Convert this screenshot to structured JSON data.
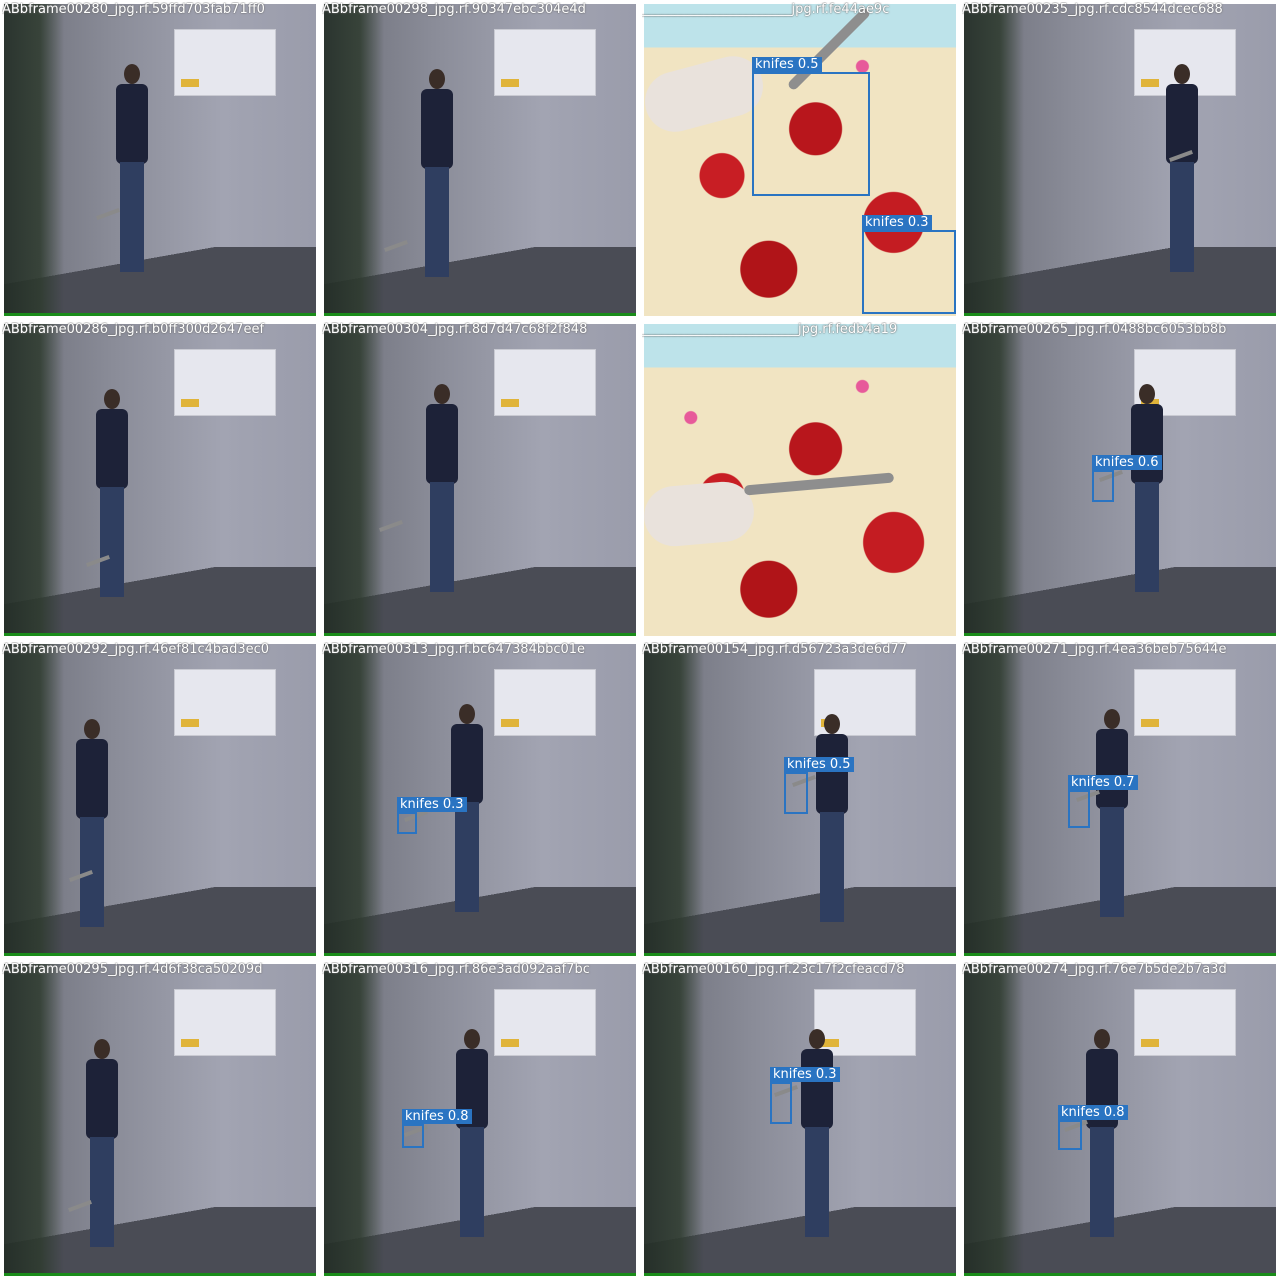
{
  "accent_color": "#2a74c2",
  "tiles": [
    {
      "filename": "ABbframe00280_jpg.rf.59ffd703fab71ff0",
      "scene": "room",
      "boxes": []
    },
    {
      "filename": "ABbframe00298_jpg.rf.90347ebc304e4d",
      "scene": "room",
      "boxes": []
    },
    {
      "filename": "_______________________jpg.rf.fe44ae9c",
      "scene": "bed",
      "boxes": [
        {
          "label": "knifes",
          "conf": "0.5"
        },
        {
          "label": "knifes",
          "conf": "0.3"
        }
      ]
    },
    {
      "filename": "ABbframe00235_jpg.rf.cdc8544dcec688",
      "scene": "room",
      "boxes": []
    },
    {
      "filename": "ABbframe00286_jpg.rf.b0ff300d2647eef",
      "scene": "room",
      "boxes": []
    },
    {
      "filename": "ABbframe00304_jpg.rf.8d7d47c68f2f848",
      "scene": "room",
      "boxes": []
    },
    {
      "filename": "________________________jpg.rf.fedb4a19",
      "scene": "bed",
      "boxes": []
    },
    {
      "filename": "ABbframe00265_jpg.rf.0488bc6053bb8b",
      "scene": "room",
      "boxes": [
        {
          "label": "knifes",
          "conf": "0.6"
        }
      ]
    },
    {
      "filename": "ABbframe00292_jpg.rf.46ef81c4bad3ec0",
      "scene": "room",
      "boxes": []
    },
    {
      "filename": "ABbframe00313_jpg.rf.bc647384bbc01e",
      "scene": "room",
      "boxes": [
        {
          "label": "knifes",
          "conf": "0.3"
        }
      ]
    },
    {
      "filename": "ABbframe00154_jpg.rf.d56723a3de6d77",
      "scene": "room",
      "boxes": [
        {
          "label": "knifes",
          "conf": "0.5"
        }
      ]
    },
    {
      "filename": "ABbframe00271_jpg.rf.4ea36beb75644e",
      "scene": "room",
      "boxes": [
        {
          "label": "knifes",
          "conf": "0.7"
        }
      ]
    },
    {
      "filename": "ABbframe00295_jpg.rf.4d6f38ca50209d",
      "scene": "room",
      "boxes": []
    },
    {
      "filename": "ABbframe00316_jpg.rf.86e3ad092aaf7bc",
      "scene": "room",
      "boxes": [
        {
          "label": "knifes",
          "conf": "0.8"
        }
      ]
    },
    {
      "filename": "ABbframe00160_jpg.rf.23c17f2cfeacd78",
      "scene": "room",
      "boxes": [
        {
          "label": "knifes",
          "conf": "0.3"
        }
      ]
    },
    {
      "filename": "ABbframe00274_jpg.rf.76e7b5de2b7a3d",
      "scene": "room",
      "boxes": [
        {
          "label": "knifes",
          "conf": "0.8"
        }
      ]
    }
  ]
}
